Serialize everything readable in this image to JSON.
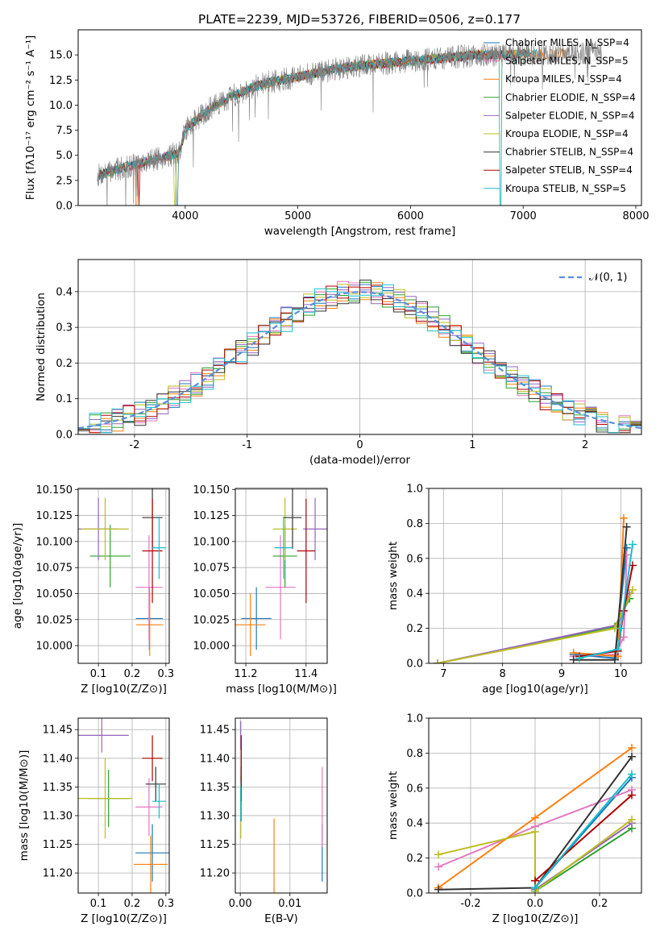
{
  "figure": {
    "title": "PLATE=2239, MJD=53726, FIBERID=0506, z=0.177"
  },
  "colors": {
    "chabrier_miles": "#1f77b4",
    "salpeter_miles": "#e377c2",
    "kroupa_miles": "#ff7f0e",
    "chabrier_elodie": "#2ca02c",
    "salpeter_elodie": "#9467bd",
    "kroupa_elodie": "#bcbd22",
    "chabrier_stelib": "#333333",
    "salpeter_stelib": "#b00000",
    "kroupa_stelib": "#17becf",
    "normal": "#5b8ddb",
    "spectrum": "#808080"
  },
  "chart_data": [
    {
      "id": "spectrum",
      "type": "line",
      "xlabel": "wavelength [Angstrom, rest frame]",
      "ylabel": "Flux [fλ10⁻¹⁷ erg cm⁻² s⁻¹ A⁻¹]",
      "xlim": [
        3050,
        8050
      ],
      "ylim": [
        0,
        17.5
      ],
      "xticks": [
        4000,
        5000,
        6000,
        7000,
        8000
      ],
      "yticks": [
        0.0,
        2.5,
        5.0,
        7.5,
        10.0,
        12.5,
        15.0
      ],
      "legend_position": "upper-right",
      "legend": [
        "Chabrier MILES, N_SSP=4",
        "Salpeter MILES, N_SSP=5",
        "Kroupa MILES, N_SSP=4",
        "Chabrier ELODIE, N_SSP=4",
        "Salpeter ELODIE, N_SSP=4",
        "Kroupa ELODIE, N_SSP=4",
        "Chabrier STELIB, N_SSP=4",
        "Salpeter STELIB, N_SSP=4",
        "Kroupa STELIB, N_SSP=5"
      ],
      "continuum": {
        "x": [
          3220,
          3400,
          3600,
          3800,
          3950,
          4000,
          4200,
          4400,
          4600,
          4800,
          5000,
          5200,
          5400,
          5600,
          5800,
          6000,
          6200,
          6400,
          6600,
          6800,
          7000,
          7200,
          7400,
          7600,
          7700
        ],
        "y": [
          3.0,
          3.6,
          4.2,
          4.8,
          5.2,
          7.6,
          9.5,
          10.8,
          11.8,
          12.4,
          12.8,
          13.3,
          13.7,
          14.0,
          14.2,
          14.4,
          14.6,
          14.8,
          15.0,
          15.0,
          15.1,
          15.1,
          15.2,
          15.3,
          15.0
        ]
      }
    },
    {
      "id": "residual_histogram",
      "type": "line",
      "xlabel": "(data-model)/error",
      "ylabel": "Normed distribution",
      "xlim": [
        -2.5,
        2.5
      ],
      "ylim": [
        0,
        0.49
      ],
      "xticks": [
        -2,
        -1,
        0,
        1,
        2
      ],
      "yticks": [
        0.0,
        0.1,
        0.2,
        0.3,
        0.4
      ],
      "legend": [
        "𝒩(0, 1)"
      ],
      "legend_position": "upper-right",
      "bin_width": 0.1,
      "bin_start": -2.5
    },
    {
      "id": "age_vs_Z",
      "type": "scatter",
      "xlabel": "Z [log10(Z/Z⊙)]",
      "ylabel": "age  [log10(age/yr)]",
      "xlim": [
        0.04,
        0.31
      ],
      "ylim": [
        9.983,
        10.151
      ],
      "xticks": [
        0.1,
        0.2,
        0.3
      ],
      "yticks": [
        10.0,
        10.025,
        10.05,
        10.075,
        10.1,
        10.125,
        10.15
      ],
      "points": [
        {
          "model": "chabrier_miles",
          "x": 0.251,
          "xerr": 0.04,
          "y": 10.026,
          "yerr": 0.03
        },
        {
          "model": "salpeter_miles",
          "x": 0.25,
          "xerr": 0.04,
          "y": 10.056,
          "yerr": 0.05
        },
        {
          "model": "kroupa_miles",
          "x": 0.252,
          "xerr": 0.04,
          "y": 10.02,
          "yerr": 0.03
        },
        {
          "model": "chabrier_elodie",
          "x": 0.135,
          "xerr": 0.06,
          "y": 10.086,
          "yerr": 0.03
        },
        {
          "model": "salpeter_elodie",
          "x": 0.1,
          "xerr": 0.06,
          "y": 10.112,
          "yerr": 0.03
        },
        {
          "model": "kroupa_elodie",
          "x": 0.12,
          "xerr": 0.07,
          "y": 10.112,
          "yerr": 0.03
        },
        {
          "model": "chabrier_stelib",
          "x": 0.26,
          "xerr": 0.03,
          "y": 10.123,
          "yerr": 0.03
        },
        {
          "model": "salpeter_stelib",
          "x": 0.26,
          "xerr": 0.03,
          "y": 10.091,
          "yerr": 0.05
        },
        {
          "model": "kroupa_stelib",
          "x": 0.28,
          "xerr": 0.02,
          "y": 10.094,
          "yerr": 0.03
        }
      ]
    },
    {
      "id": "age_vs_mass",
      "type": "scatter",
      "xlabel": "mass [log10(M/M⊙)]",
      "ylabel": "",
      "xlim": [
        11.165,
        11.47
      ],
      "ylim": [
        9.983,
        10.151
      ],
      "xticks": [
        11.2,
        11.4
      ],
      "yticks": [
        10.0,
        10.025,
        10.05,
        10.075,
        10.1,
        10.125,
        10.15
      ],
      "points": [
        {
          "model": "chabrier_miles",
          "x": 11.235,
          "xerr": 0.05,
          "y": 10.026,
          "yerr": 0.03
        },
        {
          "model": "salpeter_miles",
          "x": 11.315,
          "xerr": 0.05,
          "y": 10.056,
          "yerr": 0.05
        },
        {
          "model": "kroupa_miles",
          "x": 11.215,
          "xerr": 0.05,
          "y": 10.02,
          "yerr": 0.03
        },
        {
          "model": "chabrier_elodie",
          "x": 11.33,
          "xerr": 0.04,
          "y": 10.086,
          "yerr": 0.03
        },
        {
          "model": "salpeter_elodie",
          "x": 11.43,
          "xerr": 0.04,
          "y": 10.112,
          "yerr": 0.03
        },
        {
          "model": "kroupa_elodie",
          "x": 11.33,
          "xerr": 0.04,
          "y": 10.112,
          "yerr": 0.03
        },
        {
          "model": "chabrier_stelib",
          "x": 11.355,
          "xerr": 0.03,
          "y": 10.123,
          "yerr": 0.03
        },
        {
          "model": "salpeter_stelib",
          "x": 11.4,
          "xerr": 0.03,
          "y": 10.091,
          "yerr": 0.05
        },
        {
          "model": "kroupa_stelib",
          "x": 11.325,
          "xerr": 0.03,
          "y": 10.094,
          "yerr": 0.03
        }
      ]
    },
    {
      "id": "mass_weight_vs_age",
      "type": "line",
      "xlabel": "age  [log10(age/yr)]",
      "ylabel": "mass weight",
      "xlim": [
        6.75,
        10.35
      ],
      "ylim": [
        0,
        1.0
      ],
      "xticks": [
        7,
        8,
        9,
        10
      ],
      "yticks": [
        0.0,
        0.2,
        0.4,
        0.6,
        0.8,
        1.0
      ],
      "series": [
        {
          "model": "chabrier_miles",
          "x": [
            9.2,
            9.9,
            10.1
          ],
          "y": [
            0.05,
            0.03,
            0.66
          ]
        },
        {
          "model": "salpeter_miles",
          "x": [
            9.2,
            9.9,
            10.05,
            10.1
          ],
          "y": [
            0.04,
            0.05,
            0.15,
            0.62
          ]
        },
        {
          "model": "kroupa_miles",
          "x": [
            9.2,
            9.95,
            10.05
          ],
          "y": [
            0.06,
            0.04,
            0.83
          ]
        },
        {
          "model": "chabrier_elodie",
          "x": [
            6.9,
            9.9,
            10.15
          ],
          "y": [
            0.0,
            0.21,
            0.37
          ]
        },
        {
          "model": "salpeter_elodie",
          "x": [
            6.9,
            9.95,
            10.15
          ],
          "y": [
            0.0,
            0.22,
            0.4
          ]
        },
        {
          "model": "kroupa_elodie",
          "x": [
            6.9,
            9.9,
            10.2
          ],
          "y": [
            0.0,
            0.2,
            0.42
          ]
        },
        {
          "model": "chabrier_stelib",
          "x": [
            9.2,
            9.9,
            10.1
          ],
          "y": [
            0.02,
            0.02,
            0.78
          ]
        },
        {
          "model": "salpeter_stelib",
          "x": [
            9.3,
            9.95,
            10.05,
            10.2
          ],
          "y": [
            0.04,
            0.07,
            0.3,
            0.56
          ]
        },
        {
          "model": "kroupa_stelib",
          "x": [
            9.3,
            9.95,
            10.0,
            10.2
          ],
          "y": [
            0.03,
            0.08,
            0.2,
            0.68
          ]
        }
      ]
    },
    {
      "id": "mass_vs_Z",
      "type": "scatter",
      "xlabel": "Z [log10(Z/Z⊙)]",
      "ylabel": "mass [log10(M/M⊙)]",
      "xlim": [
        0.04,
        0.31
      ],
      "ylim": [
        11.165,
        11.47
      ],
      "xticks": [
        0.1,
        0.2,
        0.3
      ],
      "yticks": [
        11.2,
        11.25,
        11.3,
        11.35,
        11.4,
        11.45
      ],
      "points": [
        {
          "model": "chabrier_miles",
          "x": 0.26,
          "xerr": 0.05,
          "y": 11.235,
          "yerr": 0.05
        },
        {
          "model": "salpeter_miles",
          "x": 0.25,
          "xerr": 0.04,
          "y": 11.315,
          "yerr": 0.05
        },
        {
          "model": "kroupa_miles",
          "x": 0.255,
          "xerr": 0.05,
          "y": 11.215,
          "yerr": 0.05
        },
        {
          "model": "chabrier_elodie",
          "x": 0.13,
          "xerr": 0.06,
          "y": 11.33,
          "yerr": 0.05
        },
        {
          "model": "salpeter_elodie",
          "x": 0.11,
          "xerr": 0.08,
          "y": 11.44,
          "yerr": 0.03
        },
        {
          "model": "kroupa_elodie",
          "x": 0.12,
          "xerr": 0.08,
          "y": 11.33,
          "yerr": 0.07
        },
        {
          "model": "chabrier_stelib",
          "x": 0.27,
          "xerr": 0.03,
          "y": 11.355,
          "yerr": 0.03
        },
        {
          "model": "salpeter_stelib",
          "x": 0.26,
          "xerr": 0.03,
          "y": 11.4,
          "yerr": 0.04
        },
        {
          "model": "kroupa_stelib",
          "x": 0.28,
          "xerr": 0.02,
          "y": 11.325,
          "yerr": 0.03
        }
      ]
    },
    {
      "id": "mass_vs_ebv",
      "type": "scatter",
      "xlabel": "E(B-V)",
      "ylabel": "",
      "xlim": [
        -0.001,
        0.0175
      ],
      "ylim": [
        11.165,
        11.47
      ],
      "xticks": [
        0.0,
        0.01
      ],
      "yticks": [
        11.2,
        11.25,
        11.3,
        11.35,
        11.4,
        11.45
      ],
      "points": [
        {
          "model": "chabrier_miles",
          "x": 0.0165,
          "y": 11.235,
          "yerr": 0.05
        },
        {
          "model": "salpeter_miles",
          "x": 0.0165,
          "y": 11.315,
          "yerr": 0.07
        },
        {
          "model": "kroupa_miles",
          "x": 0.0068,
          "y": 11.23,
          "yerr": 0.065
        },
        {
          "model": "chabrier_elodie",
          "x": 0.0002,
          "y": 11.33,
          "yerr": 0.04
        },
        {
          "model": "salpeter_elodie",
          "x": 0.0001,
          "y": 11.44,
          "yerr": 0.025
        },
        {
          "model": "kroupa_elodie",
          "x": 0.0001,
          "y": 11.3,
          "yerr": 0.04
        },
        {
          "model": "chabrier_stelib",
          "x": 0.0002,
          "y": 11.355,
          "yerr": 0.03
        },
        {
          "model": "salpeter_stelib",
          "x": 0.0002,
          "y": 11.4,
          "yerr": 0.04
        },
        {
          "model": "kroupa_stelib",
          "x": 0.0001,
          "y": 11.32,
          "yerr": 0.03
        }
      ]
    },
    {
      "id": "mass_weight_vs_Z",
      "type": "line",
      "xlabel": "Z [log10(Z/Z⊙)]",
      "ylabel": "mass weight",
      "xlim": [
        -0.33,
        0.33
      ],
      "ylim": [
        0,
        1.0
      ],
      "xticks": [
        -0.2,
        0.0,
        0.2
      ],
      "yticks": [
        0.0,
        0.2,
        0.4,
        0.6,
        0.8,
        1.0
      ],
      "series": [
        {
          "model": "chabrier_miles",
          "x": [
            0.0,
            0.3
          ],
          "y": [
            0.03,
            0.66
          ]
        },
        {
          "model": "salpeter_miles",
          "x": [
            -0.3,
            0.0,
            0.3
          ],
          "y": [
            0.15,
            0.38,
            0.59
          ]
        },
        {
          "model": "kroupa_miles",
          "x": [
            -0.3,
            0.0,
            0.3
          ],
          "y": [
            0.03,
            0.43,
            0.83
          ]
        },
        {
          "model": "chabrier_elodie",
          "x": [
            0.0,
            0.3
          ],
          "y": [
            0.01,
            0.37
          ]
        },
        {
          "model": "salpeter_elodie",
          "x": [
            0.0,
            0.3
          ],
          "y": [
            0.02,
            0.4
          ]
        },
        {
          "model": "kroupa_elodie",
          "x": [
            -0.3,
            0.0,
            0.0,
            0.3
          ],
          "y": [
            0.22,
            0.35,
            0.01,
            0.42
          ]
        },
        {
          "model": "chabrier_stelib",
          "x": [
            -0.3,
            0.0,
            0.3
          ],
          "y": [
            0.02,
            0.03,
            0.78
          ]
        },
        {
          "model": "salpeter_stelib",
          "x": [
            0.0,
            0.3
          ],
          "y": [
            0.07,
            0.56
          ]
        },
        {
          "model": "kroupa_stelib",
          "x": [
            0.0,
            0.3
          ],
          "y": [
            0.03,
            0.68
          ]
        }
      ]
    }
  ]
}
